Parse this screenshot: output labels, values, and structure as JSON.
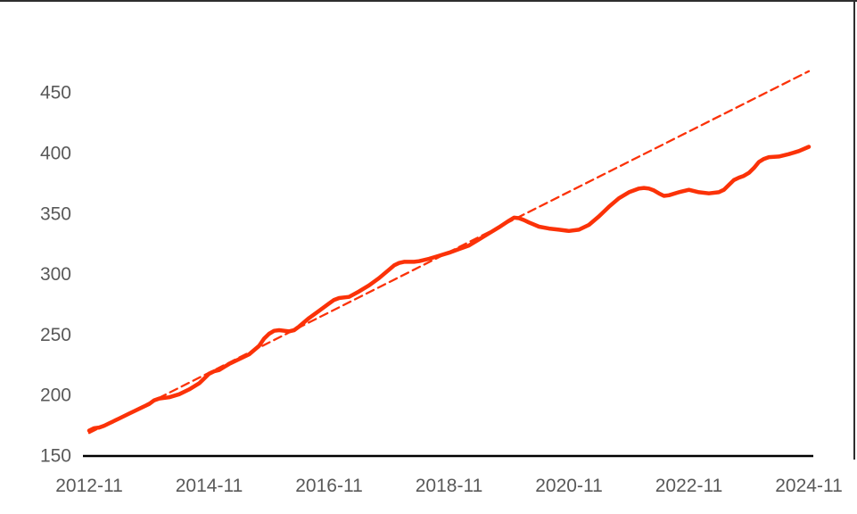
{
  "chart_data": {
    "type": "line",
    "title": "",
    "xlabel": "",
    "ylabel": "",
    "grid": false,
    "legend": "none",
    "axis_label_color": "#595959",
    "axis_line_color": "#000000",
    "background_color": "#ffffff",
    "x_axis": {
      "unit": "months-since-2012-11",
      "range": [
        0,
        144
      ],
      "ticks": [
        {
          "month": 0,
          "label": "2012-11"
        },
        {
          "month": 24,
          "label": "2014-11"
        },
        {
          "month": 48,
          "label": "2016-11"
        },
        {
          "month": 72,
          "label": "2018-11"
        },
        {
          "month": 96,
          "label": "2020-11"
        },
        {
          "month": 120,
          "label": "2022-11"
        },
        {
          "month": 144,
          "label": "2024-11"
        }
      ]
    },
    "y_axis": {
      "range": [
        150,
        480
      ],
      "ticks": [
        {
          "value": 150,
          "label": "150"
        },
        {
          "value": 200,
          "label": "200"
        },
        {
          "value": 250,
          "label": "250"
        },
        {
          "value": 300,
          "label": "300"
        },
        {
          "value": 350,
          "label": "350"
        },
        {
          "value": 400,
          "label": "400"
        },
        {
          "value": 450,
          "label": "450"
        }
      ]
    },
    "series": [
      {
        "name": "index-actual",
        "style": "solid",
        "color": "#fb3208",
        "stroke_width": 4.5,
        "points": [
          [
            0,
            171
          ],
          [
            1,
            173
          ],
          [
            2,
            173.5
          ],
          [
            3,
            175
          ],
          [
            4,
            177
          ],
          [
            6,
            181
          ],
          [
            8,
            185
          ],
          [
            10,
            189
          ],
          [
            12,
            193
          ],
          [
            13,
            196
          ],
          [
            14,
            197.5
          ],
          [
            16,
            198.5
          ],
          [
            18,
            201
          ],
          [
            20,
            205
          ],
          [
            22,
            210
          ],
          [
            23,
            214
          ],
          [
            24,
            218
          ],
          [
            25,
            220
          ],
          [
            26,
            221
          ],
          [
            28,
            226
          ],
          [
            30,
            230
          ],
          [
            32,
            234
          ],
          [
            34,
            241
          ],
          [
            35,
            247
          ],
          [
            36,
            251
          ],
          [
            37,
            253.5
          ],
          [
            38,
            254
          ],
          [
            40,
            253
          ],
          [
            41,
            254
          ],
          [
            42,
            257
          ],
          [
            44,
            264
          ],
          [
            46,
            270
          ],
          [
            48,
            276
          ],
          [
            49,
            279
          ],
          [
            50,
            280.5
          ],
          [
            52,
            281.5
          ],
          [
            54,
            286
          ],
          [
            56,
            291
          ],
          [
            58,
            297
          ],
          [
            60,
            304
          ],
          [
            61,
            307.5
          ],
          [
            62,
            309.5
          ],
          [
            63,
            310.5
          ],
          [
            65,
            310.5
          ],
          [
            66,
            311
          ],
          [
            68,
            313
          ],
          [
            70,
            315.5
          ],
          [
            72,
            318
          ],
          [
            74,
            321
          ],
          [
            76,
            324
          ],
          [
            78,
            329
          ],
          [
            80,
            334
          ],
          [
            82,
            339
          ],
          [
            84,
            344.5
          ],
          [
            85,
            347
          ],
          [
            86,
            346.5
          ],
          [
            87,
            345
          ],
          [
            88,
            343
          ],
          [
            90,
            339.5
          ],
          [
            92,
            338
          ],
          [
            94,
            337
          ],
          [
            96,
            336
          ],
          [
            98,
            337
          ],
          [
            100,
            341
          ],
          [
            102,
            348
          ],
          [
            104,
            356
          ],
          [
            106,
            363
          ],
          [
            108,
            368
          ],
          [
            110,
            371
          ],
          [
            111,
            371.5
          ],
          [
            112,
            371
          ],
          [
            113,
            369.5
          ],
          [
            114,
            367
          ],
          [
            115,
            365
          ],
          [
            116,
            365.5
          ],
          [
            118,
            368
          ],
          [
            120,
            370
          ],
          [
            122,
            368
          ],
          [
            124,
            367
          ],
          [
            126,
            368
          ],
          [
            127,
            370
          ],
          [
            128,
            374
          ],
          [
            129,
            378
          ],
          [
            130,
            380
          ],
          [
            131,
            381.5
          ],
          [
            132,
            384
          ],
          [
            133,
            388
          ],
          [
            134,
            393
          ],
          [
            135,
            395.5
          ],
          [
            136,
            397
          ],
          [
            138,
            397.5
          ],
          [
            140,
            399.5
          ],
          [
            142,
            402
          ],
          [
            144,
            405.5
          ]
        ]
      },
      {
        "name": "linear-trend",
        "style": "dashed",
        "color": "#fb3208",
        "stroke_width": 2.3,
        "dash_pattern": "9 5.5",
        "points": [
          [
            0,
            169
          ],
          [
            144,
            468
          ]
        ]
      }
    ],
    "decorations": {
      "top_border_color": "#2e2e2e",
      "right_edge_line_color": "#2e2e2e"
    }
  }
}
